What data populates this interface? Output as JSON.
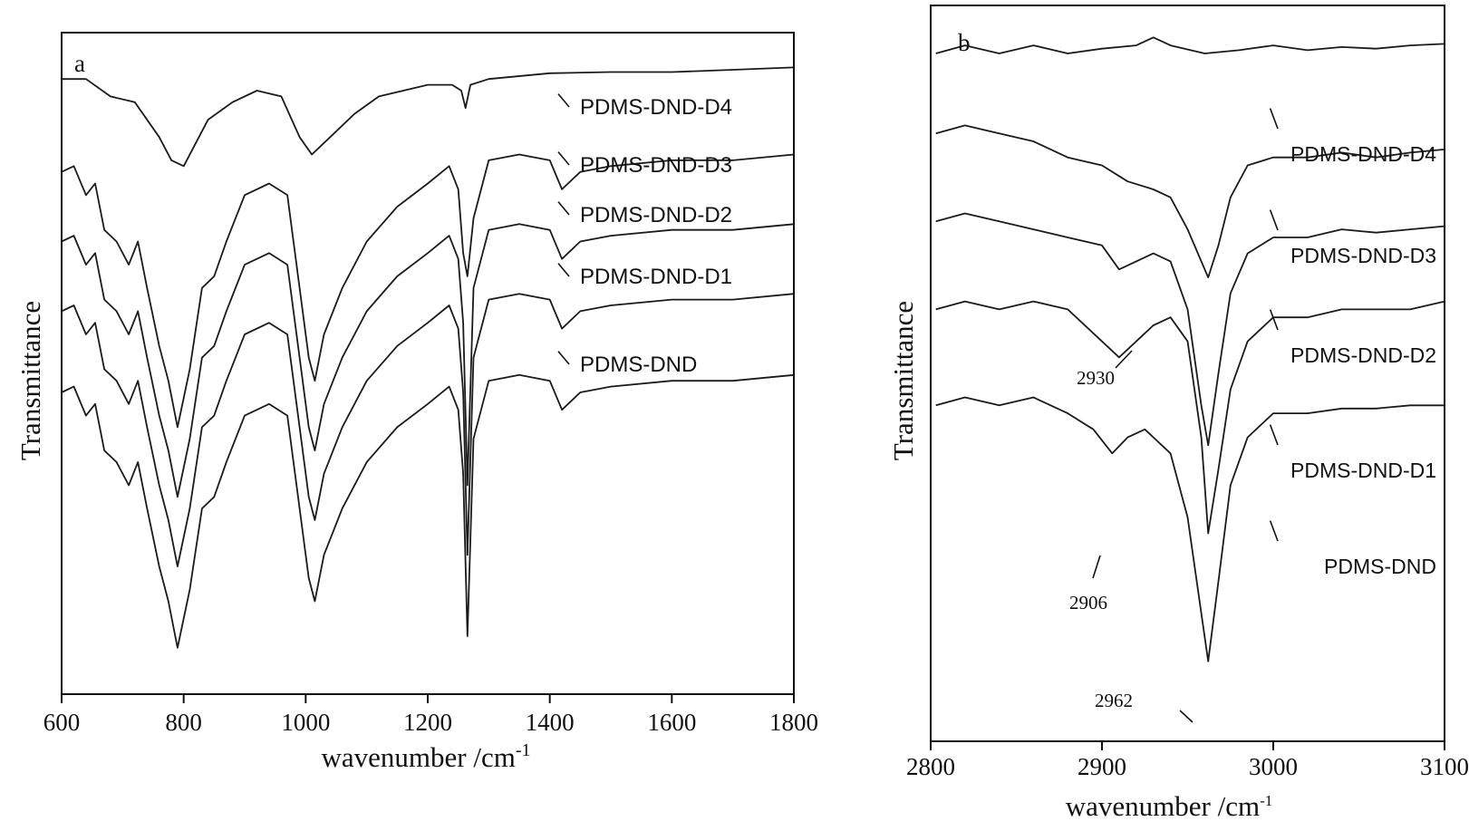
{
  "chart_data": [
    {
      "panel": "a",
      "type": "line",
      "xlabel": "wavenumber /cm",
      "xlabel_sup": "-1",
      "ylabel": "Transmittance",
      "xlim": [
        600,
        1800
      ],
      "xticks": [
        600,
        800,
        1000,
        1200,
        1400,
        1600,
        1800
      ],
      "yticks": [],
      "grid": false,
      "series": [
        {
          "name": "PDMS-DND-D4",
          "x": [
            600,
            640,
            680,
            720,
            760,
            780,
            800,
            840,
            880,
            920,
            960,
            990,
            1010,
            1040,
            1080,
            1120,
            1160,
            1200,
            1240,
            1255,
            1262,
            1270,
            1300,
            1400,
            1500,
            1600,
            1700,
            1800
          ],
          "y": [
            98,
            98,
            96.5,
            96,
            93,
            91,
            90.5,
            94.5,
            96,
            97,
            96.5,
            93,
            91.5,
            93,
            95,
            96.5,
            97,
            97.5,
            97.5,
            97,
            95.5,
            97.5,
            98,
            98.5,
            98.6,
            98.6,
            98.8,
            99
          ]
        },
        {
          "name": "PDMS-DND-D3",
          "x": [
            600,
            620,
            640,
            655,
            670,
            690,
            710,
            725,
            740,
            760,
            775,
            790,
            810,
            830,
            850,
            870,
            900,
            940,
            970,
            990,
            1005,
            1015,
            1030,
            1060,
            1100,
            1150,
            1200,
            1235,
            1250,
            1258,
            1265,
            1275,
            1300,
            1350,
            1400,
            1420,
            1450,
            1500,
            1600,
            1700,
            1800
          ],
          "y": [
            90,
            90.5,
            88,
            89,
            85,
            84,
            82,
            84,
            80,
            75,
            72,
            68,
            73,
            80,
            81,
            84,
            88,
            89,
            88,
            80,
            74,
            72,
            76,
            80,
            84,
            87,
            89,
            90.5,
            88.5,
            83,
            81,
            86,
            91,
            91.5,
            91,
            88.5,
            90,
            90.5,
            91,
            91,
            91.5
          ]
        },
        {
          "name": "PDMS-DND-D2",
          "x": [
            600,
            620,
            640,
            655,
            670,
            690,
            710,
            725,
            740,
            760,
            775,
            790,
            810,
            830,
            850,
            870,
            900,
            940,
            970,
            990,
            1005,
            1015,
            1030,
            1060,
            1100,
            1150,
            1200,
            1235,
            1250,
            1258,
            1265,
            1275,
            1300,
            1350,
            1400,
            1420,
            1450,
            1500,
            1600,
            1700,
            1800
          ],
          "y": [
            84,
            84.5,
            82,
            83,
            79,
            78,
            76,
            78,
            74,
            69,
            66,
            62,
            67,
            74,
            75,
            78,
            82,
            83,
            82,
            74,
            68,
            66,
            70,
            74,
            78,
            81,
            83,
            84.5,
            82.5,
            77,
            63,
            80,
            85,
            85.5,
            85,
            82.5,
            84,
            84.5,
            85,
            85,
            85.5
          ]
        },
        {
          "name": "PDMS-DND-D1",
          "x": [
            600,
            620,
            640,
            655,
            670,
            690,
            710,
            725,
            740,
            760,
            775,
            790,
            810,
            830,
            850,
            870,
            900,
            940,
            970,
            990,
            1005,
            1015,
            1030,
            1060,
            1100,
            1150,
            1200,
            1235,
            1250,
            1258,
            1265,
            1275,
            1300,
            1350,
            1400,
            1420,
            1450,
            1500,
            1600,
            1700,
            1800
          ],
          "y": [
            78,
            78.5,
            76,
            77,
            73,
            72,
            70,
            72,
            68,
            63,
            60,
            56,
            61,
            68,
            69,
            72,
            76,
            77,
            76,
            68,
            62,
            60,
            64,
            68,
            72,
            75,
            77,
            78.5,
            76.5,
            71,
            57,
            74,
            79,
            79.5,
            79,
            76.5,
            78,
            78.5,
            79,
            79,
            79.5
          ]
        },
        {
          "name": "PDMS-DND",
          "x": [
            600,
            620,
            640,
            655,
            670,
            690,
            710,
            725,
            740,
            760,
            775,
            790,
            810,
            830,
            850,
            870,
            900,
            940,
            970,
            990,
            1005,
            1015,
            1030,
            1060,
            1100,
            1150,
            1200,
            1235,
            1250,
            1258,
            1265,
            1275,
            1300,
            1350,
            1400,
            1420,
            1450,
            1500,
            1600,
            1700,
            1800
          ],
          "y": [
            71,
            71.5,
            69,
            70,
            66,
            65,
            63,
            65,
            61,
            56,
            53,
            49,
            54,
            61,
            62,
            65,
            69,
            70,
            69,
            61,
            55,
            53,
            57,
            61,
            65,
            68,
            70,
            71.5,
            69.5,
            64,
            50,
            67,
            72,
            72.5,
            72,
            69.5,
            71,
            71.5,
            72,
            72,
            72.5
          ]
        }
      ],
      "legend_position": "right",
      "annotations": []
    },
    {
      "panel": "b",
      "type": "line",
      "xlabel": "wavenumber /cm",
      "xlabel_sup": "-1",
      "ylabel": "Transmittance",
      "xlim": [
        2800,
        3100
      ],
      "xticks": [
        2800,
        2900,
        3000,
        3100
      ],
      "yticks": [],
      "grid": false,
      "series": [
        {
          "name": "PDMS-DND-D4",
          "x": [
            2803,
            2820,
            2840,
            2860,
            2880,
            2900,
            2920,
            2930,
            2940,
            2960,
            2980,
            3000,
            3020,
            3040,
            3060,
            3080,
            3100
          ],
          "y": [
            98,
            98.5,
            98,
            98.5,
            98,
            98.3,
            98.5,
            99,
            98.5,
            98,
            98.2,
            98.5,
            98.2,
            98.4,
            98.3,
            98.5,
            98.6
          ]
        },
        {
          "name": "PDMS-DND-D3",
          "x": [
            2803,
            2820,
            2840,
            2860,
            2880,
            2900,
            2915,
            2930,
            2940,
            2950,
            2958,
            2962,
            2968,
            2975,
            2985,
            3000,
            3020,
            3040,
            3060,
            3080,
            3100
          ],
          "y": [
            93,
            93.5,
            93,
            92.5,
            91.5,
            91,
            90,
            89.5,
            89,
            87,
            85,
            84,
            86,
            89,
            91,
            91.5,
            91.5,
            91.8,
            91.5,
            91.8,
            92
          ]
        },
        {
          "name": "PDMS-DND-D2",
          "x": [
            2803,
            2820,
            2840,
            2860,
            2880,
            2900,
            2910,
            2920,
            2930,
            2940,
            2950,
            2958,
            2962,
            2968,
            2975,
            2985,
            3000,
            3020,
            3040,
            3060,
            3080,
            3100
          ],
          "y": [
            87.5,
            88,
            87.5,
            87,
            86.5,
            86,
            84.5,
            85,
            85.5,
            85,
            82,
            76,
            73.5,
            78,
            83,
            85.5,
            86.5,
            86.5,
            87,
            86.8,
            87,
            87.2
          ]
        },
        {
          "name": "PDMS-DND-D1",
          "x": [
            2803,
            2820,
            2840,
            2860,
            2880,
            2900,
            2910,
            2920,
            2930,
            2940,
            2950,
            2958,
            2962,
            2968,
            2975,
            2985,
            3000,
            3020,
            3040,
            3060,
            3080,
            3100
          ],
          "y": [
            82,
            82.5,
            82,
            82.5,
            82,
            80,
            79,
            80,
            81,
            81.5,
            80,
            74,
            68,
            72,
            77,
            80,
            81.5,
            81.5,
            82,
            82,
            82,
            82.5
          ]
        },
        {
          "name": "PDMS-DND",
          "x": [
            2803,
            2820,
            2840,
            2860,
            2880,
            2895,
            2906,
            2915,
            2925,
            2940,
            2950,
            2958,
            2962,
            2968,
            2975,
            2985,
            3000,
            3020,
            3040,
            3060,
            3080,
            3100
          ],
          "y": [
            76,
            76.5,
            76,
            76.5,
            75.5,
            74.5,
            73,
            74,
            74.5,
            73,
            69,
            63,
            60,
            65,
            71,
            74,
            75.5,
            75.5,
            75.8,
            75.8,
            76,
            76
          ]
        }
      ],
      "legend_position": "right",
      "annotations": [
        {
          "text": "2930",
          "x": 2930
        },
        {
          "text": "2906",
          "x": 2906
        },
        {
          "text": "2962",
          "x": 2962
        }
      ]
    }
  ]
}
